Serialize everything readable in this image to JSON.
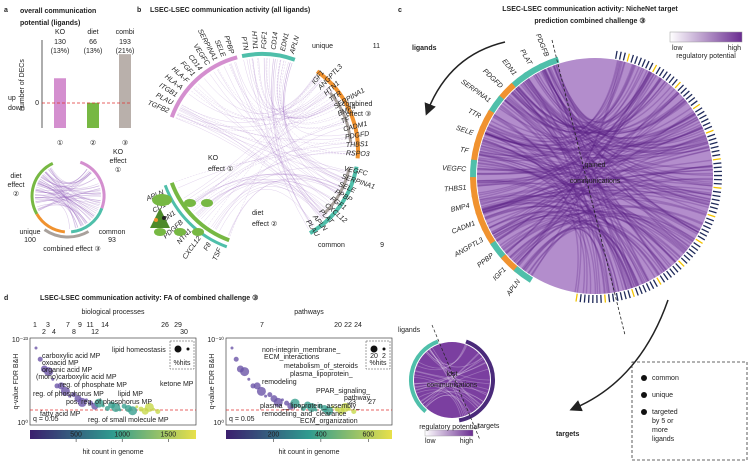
{
  "chart_data": {
    "type": "bar",
    "title": [
      "overall communication",
      "potential (ligands)"
    ],
    "y_label": "number of DECs",
    "categories": [
      "KO",
      "diet",
      "combi"
    ],
    "values": [
      130,
      66,
      193
    ],
    "percent_labels": [
      "(13%)",
      "(13%)",
      "(21%)"
    ],
    "colors": [
      "#d48fcf",
      "#77b843",
      "#b9b0ab"
    ],
    "circled": [
      "①",
      "②",
      "③"
    ],
    "ylim": [
      0,
      230
    ],
    "zero_label": "0",
    "up_label": "up",
    "down_label": "down"
  },
  "panel_labels": [
    "a",
    "b",
    "c",
    "d"
  ],
  "panel_a_chord": {
    "diet": [
      "diet",
      "effect",
      "②"
    ],
    "ko": [
      "KO",
      "effect",
      "①"
    ],
    "unique": {
      "label": "unique",
      "count": 100
    },
    "common": {
      "label": "common",
      "count": 93
    },
    "combined": "combined effect ③"
  },
  "panel_b": {
    "title": "LSEC-LSEC communication activity (all ligands)",
    "unique": {
      "label": "unique",
      "count": 11
    },
    "common": {
      "label": "common",
      "count": 9
    },
    "combined": [
      "combined",
      "effect ③"
    ],
    "ko": [
      "KO",
      "effect ①"
    ],
    "diet": [
      "diet",
      "effect ②"
    ],
    "ligands_ko": [
      "TGFB2",
      "PLAU",
      "ITGB1",
      "HLA-A",
      "HLA-F",
      "FGF1",
      "CD14",
      "VEGFC",
      "SERPINA1",
      "SELE",
      "PPBP"
    ],
    "ligands_top": [
      "PTN",
      "HTN1",
      "FGF1",
      "CD14",
      "EDN1",
      "APLN"
    ],
    "ligands_unique": [
      "IGF1",
      "ANGPTL3",
      "HTN1",
      "TTR",
      "SERPINA1",
      "BMP4",
      "TF",
      "CADM1",
      "PDGFD",
      "THBS1",
      "RSPO3"
    ],
    "ligands_common": [
      "VEGFC",
      "SERPINA1",
      "SELE",
      "PPBP",
      "FGF1",
      "CXCL12",
      "PLAT",
      "APLN",
      "PLAU"
    ],
    "ligands_diet": [
      "TSF",
      "F8",
      "CXCL12",
      "NTN1",
      "PDGFB",
      "EDN1",
      "CD14",
      "APLN"
    ]
  },
  "panel_c": {
    "title": [
      "LSEC-LSEC communication activity: NicheNet target",
      "prediction combined challenge ③"
    ],
    "ligands_label": "ligands",
    "targets_label": "targets",
    "gained": [
      "gained",
      "communications"
    ],
    "lost": [
      "lost",
      "communications"
    ],
    "lost_ligands_label": "ligands",
    "lost_targets_label": "targets",
    "legend": {
      "low": "low",
      "high": "high",
      "title": "regulatory potential"
    },
    "ligands": [
      {
        "name": "PDGFB",
        "color": "#4fbfaa"
      },
      {
        "name": "PLAT",
        "color": "#4fbfaa"
      },
      {
        "name": "EDN1",
        "color": "#4fbfaa"
      },
      {
        "name": "PDGFD",
        "color": "#f0922f"
      },
      {
        "name": "SERPINA1",
        "color": "#4fbfaa"
      },
      {
        "name": "TTR",
        "color": "#f0922f"
      },
      {
        "name": "SELE",
        "color": "#f0922f"
      },
      {
        "name": "TF",
        "color": "#f0922f"
      },
      {
        "name": "VEGFC",
        "color": "#4fbfaa"
      },
      {
        "name": "THBS1",
        "color": "#f0922f"
      },
      {
        "name": "BMP4",
        "color": "#f0922f"
      },
      {
        "name": "CADM1",
        "color": "#f0922f"
      },
      {
        "name": "ANGPTL3",
        "color": "#f0922f"
      },
      {
        "name": "PPBP",
        "color": "#4fbfaa"
      },
      {
        "name": "IGF1",
        "color": "#f0922f"
      },
      {
        "name": "APLN",
        "color": "#4fbfaa"
      }
    ],
    "key": [
      {
        "label": [
          "common"
        ],
        "color": "#4fbfaa"
      },
      {
        "label": [
          "unique"
        ],
        "color": "#f0922f"
      },
      {
        "label": [
          "targeted",
          "by 5 or",
          "more",
          "ligands"
        ],
        "color": "#e7b400"
      }
    ]
  },
  "panel_d": {
    "title": "LSEC-LSEC communication activity: FA of combined challenge ③",
    "bp": {
      "title": "biological processes",
      "y_label": "q-value FDR B&H",
      "y_top": "10⁻²³",
      "y_bottom": "10⁰",
      "ranks_top": [
        1,
        3,
        7,
        9,
        11,
        14,
        26,
        29
      ],
      "ranks_second": [
        2,
        4,
        8,
        12,
        30
      ],
      "terms": [
        "carboxylic acid MP",
        "oxoacid MP",
        "organic acid MP",
        "(mono)carboxylic acid MP",
        "reg. of phosphate MP",
        "reg. of phosphorus MP",
        "pos. reg. of phosphorus MP",
        "lipid MP",
        "ketone MP",
        "lipid homeostasis",
        "fatty acid MP",
        "reg. of small molecule MP"
      ],
      "q_label": "q = 0.05",
      "size_label": "%hits",
      "cbar_lim": [
        0,
        1800
      ],
      "cbar_ticks": [
        500,
        1000,
        1500
      ],
      "cbar_label": "hit count in genome"
    },
    "pw": {
      "title": "pathways",
      "y_label": "q-value FDR B&H",
      "y_top": "10⁻¹⁰",
      "y_bottom": "10⁰",
      "ranks_top": [
        7,
        20,
        22,
        24
      ],
      "ranks_second": [
        23,
        27
      ],
      "terms": [
        [
          "non-integrin_membrane_",
          "ECM_interactions"
        ],
        [
          "metabolism_of_steroids"
        ],
        [
          "plasma_lipoprotein_",
          "remodeling"
        ],
        [
          "PPAR_signaling_",
          "pathway"
        ],
        [
          "plasma__lipoprotein_assembly_",
          "remodeling_and_clearance"
        ],
        [
          "ECM_organization"
        ]
      ],
      "q_label": "q = 0.05",
      "size_label": "%hits",
      "size_ticks": [
        20,
        2
      ],
      "cbar_lim": [
        0,
        700
      ],
      "cbar_ticks": [
        200,
        400,
        600
      ],
      "cbar_label": "hit count in genome"
    }
  }
}
